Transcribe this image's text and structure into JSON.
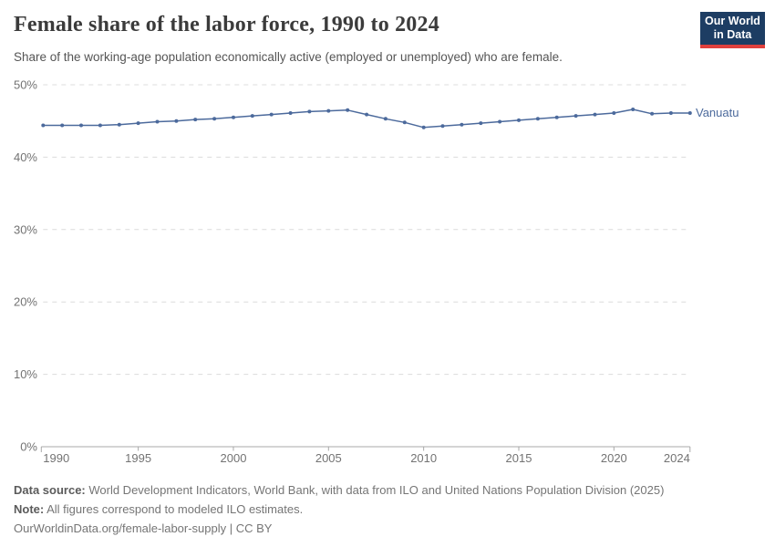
{
  "header": {
    "title": "Female share of the labor force, 1990 to 2024",
    "subtitle": "Share of the working-age population economically active (employed or unemployed) who are female.",
    "logo": {
      "line1": "Our World",
      "line2": "in Data"
    }
  },
  "chart_data": {
    "type": "line",
    "title": "Female share of the labor force, 1990 to 2024",
    "subtitle": "Share of the working-age population economically active (employed or unemployed) who are female.",
    "x": [
      1990,
      1991,
      1992,
      1993,
      1994,
      1995,
      1996,
      1997,
      1998,
      1999,
      2000,
      2001,
      2002,
      2003,
      2004,
      2005,
      2006,
      2007,
      2008,
      2009,
      2010,
      2011,
      2012,
      2013,
      2014,
      2015,
      2016,
      2017,
      2018,
      2019,
      2020,
      2021,
      2022,
      2023,
      2024
    ],
    "series": [
      {
        "name": "Vanuatu",
        "values": [
          44.4,
          44.4,
          44.4,
          44.4,
          44.5,
          44.7,
          44.9,
          45.0,
          45.2,
          45.3,
          45.5,
          45.7,
          45.9,
          46.1,
          46.3,
          46.4,
          46.5,
          45.9,
          45.3,
          44.8,
          44.1,
          44.3,
          44.5,
          44.7,
          44.9,
          45.1,
          45.3,
          45.5,
          45.7,
          45.9,
          46.1,
          46.6,
          46.0,
          46.1,
          46.1
        ]
      }
    ],
    "xlabel": "",
    "ylabel": "",
    "xlim": [
      1990,
      2024
    ],
    "ylim": [
      0,
      50
    ],
    "x_ticks": [
      1990,
      1995,
      2000,
      2005,
      2010,
      2015,
      2020,
      2024
    ],
    "x_tick_labels": [
      "1990",
      "1995",
      "2000",
      "2005",
      "2010",
      "2015",
      "2020",
      "2024"
    ],
    "y_ticks": [
      0,
      10,
      20,
      30,
      40,
      50
    ],
    "y_tick_labels": [
      "0%",
      "10%",
      "20%",
      "30%",
      "40%",
      "50%"
    ],
    "grid": "horizontal-dashed",
    "legend_position": "end-of-line"
  },
  "footer": {
    "datasource_label": "Data source:",
    "datasource_text": " World Development Indicators, World Bank, with data from ILO and United Nations Population Division (2025)",
    "note_label": "Note:",
    "note_text": " All figures correspond to modeled ILO estimates.",
    "url_line": "OurWorldinData.org/female-labor-supply | CC BY"
  },
  "colors": {
    "line": "#4c6a9c",
    "entity_label": "#4c6a9c",
    "grid": "#dcdcdc",
    "axis": "#a8a8a8",
    "tick_text": "#737373",
    "logo_bg": "#1d3d63",
    "logo_accent": "#e0403d"
  }
}
